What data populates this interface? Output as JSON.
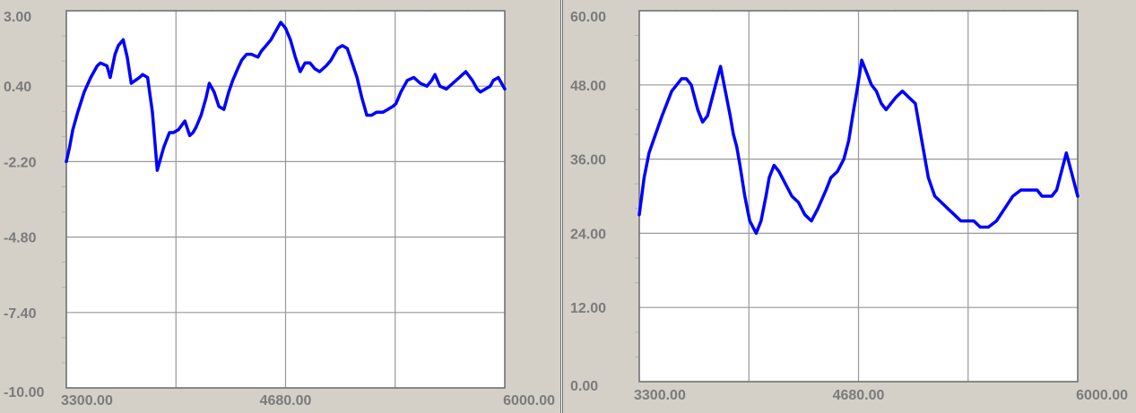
{
  "colors": {
    "line": "#0000ff",
    "grid": "#999999",
    "frame": "#6f6f6f",
    "label": "#7b7b7b",
    "plot_bg": "#ffffff"
  },
  "chart_data": [
    {
      "type": "line",
      "title": "",
      "xlabel": "",
      "ylabel": "",
      "xlim": [
        3300,
        6000
      ],
      "ylim": [
        -10,
        3
      ],
      "grid": true,
      "x_ticks": [
        "3300.00",
        "4680.00",
        "6000.00"
      ],
      "y_ticks": [
        "3.00",
        "0.40",
        "-2.20",
        "-4.80",
        "-7.40",
        "-10.00"
      ],
      "series": [
        {
          "x": [
            3300,
            3320,
            3340,
            3370,
            3410,
            3450,
            3490,
            3510,
            3550,
            3570,
            3600,
            3620,
            3650,
            3675,
            3700,
            3725,
            3750,
            3770,
            3800,
            3830,
            3860,
            3875,
            3900,
            3935,
            3960,
            3990,
            4030,
            4060,
            4080,
            4100,
            4130,
            4160,
            4180,
            4210,
            4240,
            4270,
            4300,
            4325,
            4355,
            4380,
            4410,
            4440,
            4480,
            4500,
            4530,
            4560,
            4590,
            4620,
            4650,
            4680,
            4710,
            4740,
            4770,
            4800,
            4830,
            4860,
            4900,
            4930,
            4950,
            4970,
            5000,
            5030,
            5060,
            5090,
            5120,
            5150,
            5180,
            5210,
            5250,
            5280,
            5310,
            5330,
            5360,
            5400,
            5440,
            5480,
            5520,
            5550,
            5570,
            5600,
            5640,
            5680,
            5720,
            5740,
            5760,
            5800,
            5830,
            5850,
            5880,
            5910,
            5930,
            5960,
            5980,
            6000
          ],
          "y": [
            -2.2,
            -1.7,
            -1.1,
            -0.5,
            0.2,
            0.7,
            1.1,
            1.2,
            1.1,
            0.7,
            1.5,
            1.8,
            2.0,
            1.4,
            0.5,
            0.6,
            0.7,
            0.8,
            0.7,
            -0.5,
            -2.5,
            -2.2,
            -1.7,
            -1.2,
            -1.2,
            -1.1,
            -0.8,
            -1.3,
            -1.2,
            -1.0,
            -0.6,
            0.0,
            0.5,
            0.2,
            -0.3,
            -0.4,
            0.2,
            0.6,
            1.0,
            1.3,
            1.5,
            1.5,
            1.4,
            1.6,
            1.8,
            2.0,
            2.3,
            2.6,
            2.4,
            2.0,
            1.4,
            0.9,
            1.2,
            1.2,
            1.0,
            0.9,
            1.1,
            1.3,
            1.5,
            1.7,
            1.8,
            1.7,
            1.2,
            0.7,
            0.0,
            -0.6,
            -0.6,
            -0.5,
            -0.5,
            -0.4,
            -0.3,
            -0.2,
            0.2,
            0.6,
            0.7,
            0.5,
            0.4,
            0.6,
            0.8,
            0.4,
            0.3,
            0.5,
            0.7,
            0.8,
            0.9,
            0.6,
            0.3,
            0.2,
            0.3,
            0.4,
            0.6,
            0.7,
            0.5,
            0.3
          ]
        }
      ]
    },
    {
      "type": "line",
      "title": "",
      "xlabel": "",
      "ylabel": "",
      "xlim": [
        3300,
        6000
      ],
      "ylim": [
        0,
        60
      ],
      "grid": true,
      "x_ticks": [
        "3300.00",
        "4680.00",
        "6000.00"
      ],
      "y_ticks": [
        "60.00",
        "48.00",
        "36.00",
        "24.00",
        "12.00",
        "0.00"
      ],
      "series": [
        {
          "x": [
            3300,
            3330,
            3360,
            3400,
            3440,
            3470,
            3500,
            3530,
            3560,
            3590,
            3620,
            3660,
            3690,
            3720,
            3750,
            3770,
            3800,
            3830,
            3860,
            3880,
            3900,
            3920,
            3950,
            3980,
            4020,
            4050,
            4080,
            4100,
            4130,
            4160,
            4200,
            4240,
            4280,
            4320,
            4360,
            4400,
            4450,
            4480,
            4520,
            4560,
            4590,
            4620,
            4640,
            4670,
            4700,
            4730,
            4760,
            4790,
            4820,
            4850,
            4880,
            4920,
            4960,
            5000,
            5040,
            5080,
            5120,
            5160,
            5200,
            5240,
            5280,
            5300,
            5330,
            5360,
            5400,
            5450,
            5500,
            5550,
            5600,
            5650,
            5700,
            5750,
            5780,
            5810,
            5840,
            5870,
            5900,
            5930,
            5960,
            6000
          ],
          "y": [
            27,
            33,
            37,
            40,
            43,
            45,
            47,
            48,
            49,
            49,
            48,
            44,
            42,
            43,
            46,
            48,
            51,
            47,
            43,
            40,
            38,
            35,
            30,
            26,
            24,
            26,
            30,
            33,
            35,
            34,
            32,
            30,
            29,
            27,
            26,
            28,
            31,
            33,
            34,
            36,
            39,
            44,
            47,
            52,
            50,
            48,
            47,
            45,
            44,
            45,
            46,
            47,
            46,
            45,
            39,
            33,
            30,
            29,
            28,
            27,
            26,
            26,
            26,
            26,
            25,
            25,
            26,
            28,
            30,
            31,
            31,
            31,
            30,
            30,
            30,
            31,
            34,
            37,
            34,
            30
          ]
        }
      ]
    }
  ]
}
